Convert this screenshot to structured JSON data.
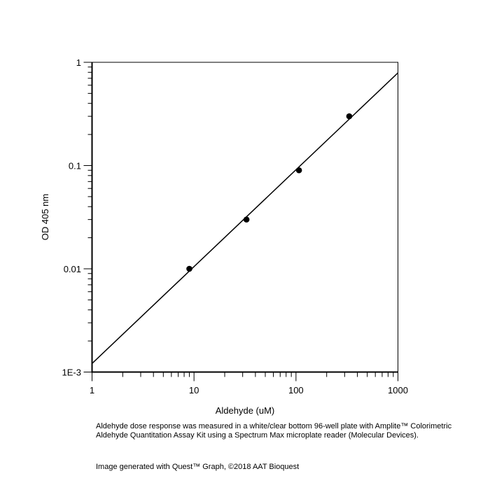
{
  "chart_data": {
    "type": "scatter",
    "xlabel": "Aldehyde (uM)",
    "ylabel": "OD 405 nm",
    "xscale": "log",
    "yscale": "log",
    "xlim": [
      1,
      1000
    ],
    "ylim": [
      0.001,
      1
    ],
    "x_ticks": [
      "1",
      "10",
      "100",
      "1000"
    ],
    "y_ticks": [
      "1E-3",
      "0.01",
      "0.1",
      "1"
    ],
    "grid": false,
    "series": [
      {
        "points": [
          {
            "x": 9.0,
            "y": 0.01
          },
          {
            "x": 32.7,
            "y": 0.03
          },
          {
            "x": 107,
            "y": 0.09
          },
          {
            "x": 333,
            "y": 0.3
          }
        ],
        "marker": "filled-circle",
        "color": "#000000"
      }
    ],
    "fit_line": {
      "x": [
        1,
        1000
      ],
      "y": [
        0.00121,
        0.79
      ],
      "color": "#000000"
    }
  },
  "caption": {
    "text": "Aldehyde dose response was measured in a white/clear bottom 96-well plate with Amplite™ Colorimetric Aldehyde Quantitation Assay Kit using a Spectrum Max microplate reader (Molecular Devices).",
    "credit": "Image generated with Quest™ Graph, ©2018 AAT Bioquest"
  }
}
